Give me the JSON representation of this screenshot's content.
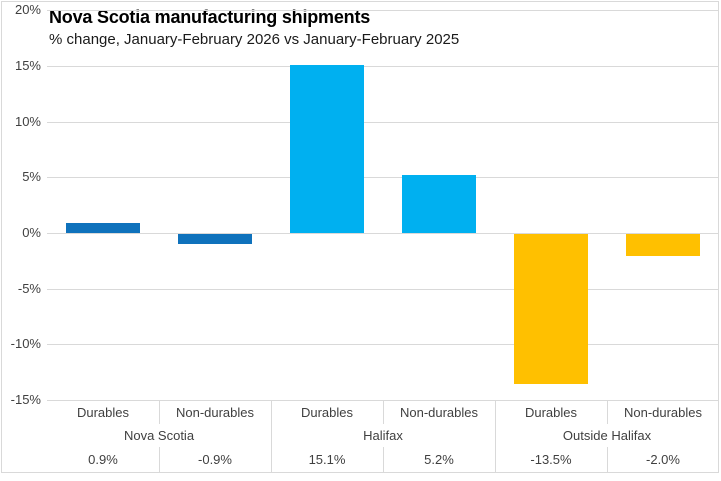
{
  "chart_data": {
    "type": "bar",
    "title": "Nova Scotia manufacturing shipments",
    "subtitle": "% change, January-February 2026 vs January-February 2025",
    "legend": "none",
    "grid": true,
    "y_axis": {
      "min": -15,
      "max": 20,
      "ticks": [
        20,
        15,
        10,
        5,
        0,
        -5,
        -10,
        -15
      ],
      "tick_labels": [
        "20%",
        "15%",
        "10%",
        "5%",
        "0%",
        "-5%",
        "-10%",
        "-15%"
      ]
    },
    "groups": [
      {
        "name": "Nova Scotia",
        "color": "#0f72bc",
        "categories": [
          "Durables",
          "Non-durables"
        ],
        "values": [
          0.9,
          -0.9
        ],
        "value_labels": [
          "0.9%",
          "-0.9%"
        ]
      },
      {
        "name": "Halifax",
        "color": "#00b0f0",
        "categories": [
          "Durables",
          "Non-durables"
        ],
        "values": [
          15.1,
          5.2
        ],
        "value_labels": [
          "15.1%",
          "5.2%"
        ]
      },
      {
        "name": "Outside Halifax",
        "color": "#ffc000",
        "categories": [
          "Durables",
          "Non-durables"
        ],
        "values": [
          -13.5,
          -2.0
        ],
        "value_labels": [
          "-13.5%",
          "-2.0%"
        ]
      }
    ]
  },
  "colors": {
    "gridline": "#d9d9d9",
    "chart_border": "#d9d9d9",
    "axis_text": "#404040",
    "title_text": "#000000"
  }
}
